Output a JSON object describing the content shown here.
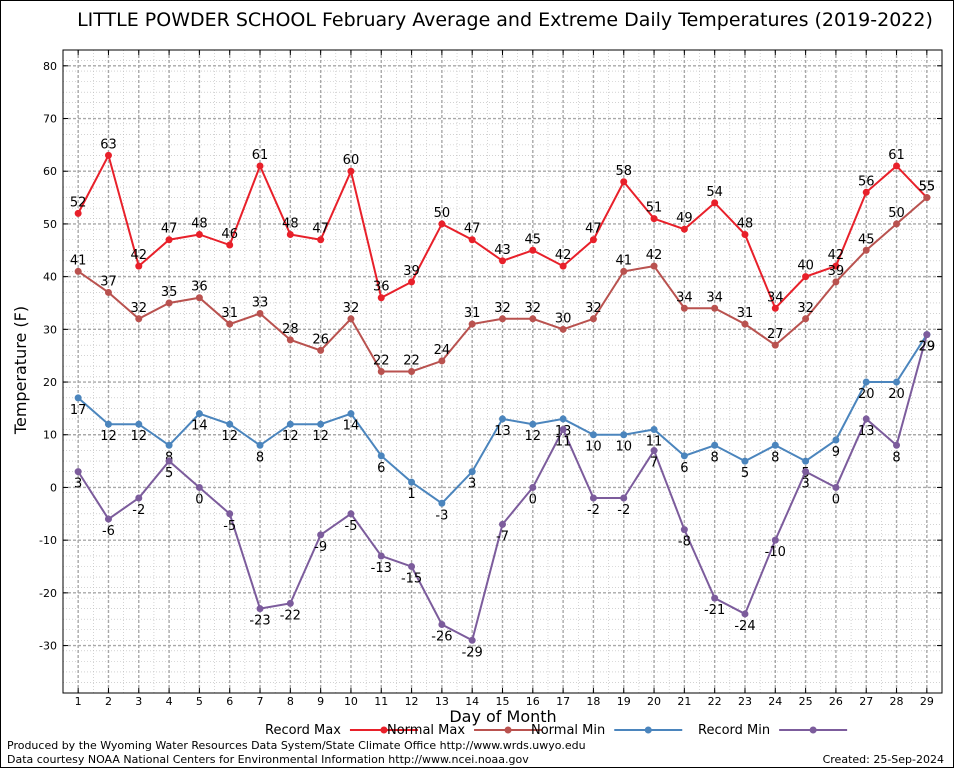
{
  "chart_data": {
    "type": "line",
    "title": "LITTLE POWDER SCHOOL February Average and Extreme Daily Temperatures (2019-2022)",
    "xlabel": "Day of Month",
    "ylabel": "Temperature (F)",
    "ylim": [
      -39,
      83
    ],
    "yticks": [
      80,
      70,
      60,
      50,
      40,
      30,
      20,
      10,
      0,
      -10,
      -20,
      -30
    ],
    "xlim": [
      0.5,
      29.5
    ],
    "x": [
      1,
      2,
      3,
      4,
      5,
      6,
      7,
      8,
      9,
      10,
      11,
      12,
      13,
      14,
      15,
      16,
      17,
      18,
      19,
      20,
      21,
      22,
      23,
      24,
      25,
      26,
      27,
      28,
      29
    ],
    "grid": true,
    "legend_position": "bottom",
    "series": [
      {
        "name": "Record Max",
        "color": "#e8202a",
        "values": [
          52,
          63,
          42,
          47,
          48,
          46,
          61,
          48,
          47,
          60,
          36,
          39,
          50,
          47,
          43,
          45,
          42,
          47,
          58,
          51,
          49,
          54,
          48,
          34,
          40,
          42,
          56,
          61,
          55
        ]
      },
      {
        "name": "Normal Max",
        "color": "#b9524f",
        "values": [
          41,
          37,
          32,
          35,
          36,
          31,
          33,
          28,
          26,
          32,
          22,
          22,
          24,
          31,
          32,
          32,
          30,
          32,
          41,
          42,
          34,
          34,
          31,
          27,
          32,
          39,
          45,
          50,
          55
        ]
      },
      {
        "name": "Normal Min",
        "color": "#4b85bd",
        "values": [
          17,
          12,
          12,
          8,
          14,
          12,
          8,
          12,
          12,
          14,
          6,
          1,
          -3,
          3,
          13,
          12,
          13,
          10,
          10,
          11,
          6,
          8,
          5,
          8,
          5,
          9,
          20,
          20,
          29
        ]
      },
      {
        "name": "Record Min",
        "color": "#7c5c9c",
        "values": [
          3,
          -6,
          -2,
          5,
          0,
          -5,
          -23,
          -22,
          -9,
          -5,
          -13,
          -15,
          -26,
          -29,
          -7,
          0,
          11,
          -2,
          -2,
          7,
          -8,
          -21,
          -24,
          -10,
          3,
          0,
          13,
          8,
          29
        ]
      }
    ]
  },
  "footer": {
    "produced_by": "Produced by the Wyoming Water Resources Data System/State Climate Office http://www.wrds.uwyo.edu",
    "courtesy": "Data courtesy NOAA National Centers for Environmental Information http://www.ncei.noaa.gov",
    "created": "Created: 25-Sep-2024"
  }
}
